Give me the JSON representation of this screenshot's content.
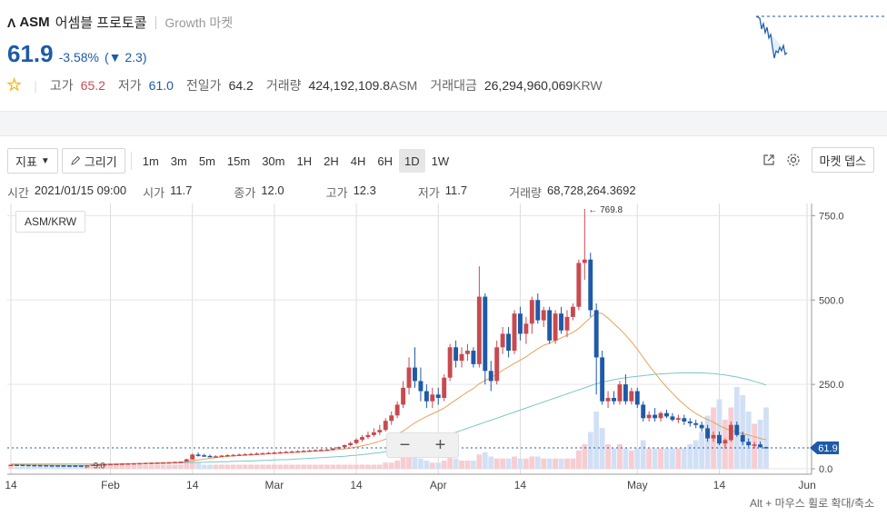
{
  "header": {
    "logo_glyph": "Λ",
    "symbol": "ASM",
    "korean_name": "어셈블 프로토콜",
    "market": "Growth 마켓",
    "price": "61.9",
    "change_pct": "-3.58%",
    "change_abs": "(▼ 2.3)",
    "high_label": "고가",
    "high_value": "65.2",
    "low_label": "저가",
    "low_value": "61.0",
    "prev_label": "전일가",
    "prev_value": "64.2",
    "volume_label": "거래량",
    "volume_value": "424,192,109.8",
    "volume_unit": "ASM",
    "amount_label": "거래대금",
    "amount_value": "26,294,960,069",
    "amount_unit": "KRW",
    "star_icon": "★"
  },
  "toolbar": {
    "indicator_label": "지표",
    "indicator_caret": "▼",
    "draw_label": "그리기",
    "intervals": [
      "1m",
      "3m",
      "5m",
      "15m",
      "30m",
      "1H",
      "2H",
      "4H",
      "6H",
      "1D",
      "1W"
    ],
    "active_interval": "1D",
    "depth_label": "마켓 뎁스"
  },
  "info": {
    "time_label": "시간",
    "time_value": "2021/01/15 09:00",
    "open_label": "시가",
    "open_value": "11.7",
    "close_label": "종가",
    "close_value": "12.0",
    "high_label": "고가",
    "high_value": "12.3",
    "low_label": "저가",
    "low_value": "11.7",
    "vol_label": "거래량",
    "vol_value": "68,728,264.3692"
  },
  "pair_label": "ASM/KRW",
  "zoom": {
    "minus": "−",
    "plus": "+"
  },
  "hint": "Alt + 마우스 휠로 확대/축소",
  "colors": {
    "up": "#c84a50",
    "down": "#1e5aa8",
    "ma_short": "#e8a15a",
    "ma_long": "#7cc6c4",
    "current_badge": "#1e5aa8"
  },
  "chart_data": {
    "type": "candlestick",
    "y_ticks": [
      "0.0",
      "250.0",
      "500.0",
      "750.0"
    ],
    "x_ticks": [
      "14",
      "Feb",
      "14",
      "Mar",
      "14",
      "Apr",
      "14",
      "May",
      "14",
      "Jun"
    ],
    "ylim": [
      0,
      770
    ],
    "current_price_label": "61.9",
    "max_annotation": "← 769.8",
    "min_annotation": "← 9.0",
    "candles": [
      [
        11.7,
        12.3,
        11.7,
        12.0
      ],
      [
        12.0,
        12.5,
        11.6,
        11.8
      ],
      [
        11.8,
        12.2,
        11.2,
        11.4
      ],
      [
        11.4,
        11.8,
        10.9,
        11.1
      ],
      [
        11.1,
        11.5,
        10.6,
        10.8
      ],
      [
        10.8,
        11.3,
        10.4,
        10.6
      ],
      [
        10.6,
        11.0,
        10.1,
        10.3
      ],
      [
        10.3,
        10.8,
        9.9,
        10.1
      ],
      [
        10.1,
        10.6,
        9.7,
        10.0
      ],
      [
        10.0,
        10.5,
        9.4,
        9.8
      ],
      [
        9.8,
        10.4,
        9.3,
        9.7
      ],
      [
        9.7,
        10.3,
        9.2,
        9.6
      ],
      [
        9.6,
        10.2,
        9.0,
        9.5
      ],
      [
        9.5,
        11.0,
        9.3,
        10.8
      ],
      [
        10.8,
        12.5,
        10.5,
        12.2
      ],
      [
        12.2,
        13.2,
        11.8,
        12.9
      ],
      [
        12.9,
        14.0,
        12.5,
        13.6
      ],
      [
        13.6,
        15.0,
        13.0,
        14.4
      ],
      [
        14.4,
        15.5,
        13.8,
        14.9
      ],
      [
        14.9,
        16.0,
        14.2,
        15.5
      ],
      [
        15.5,
        16.5,
        14.8,
        16.0
      ],
      [
        16.0,
        17.0,
        15.2,
        16.4
      ],
      [
        16.4,
        17.5,
        15.8,
        16.9
      ],
      [
        16.9,
        18.0,
        16.2,
        17.5
      ],
      [
        17.5,
        18.5,
        16.8,
        17.9
      ],
      [
        17.9,
        19.0,
        17.2,
        18.4
      ],
      [
        18.4,
        19.5,
        17.6,
        18.9
      ],
      [
        18.9,
        20.0,
        18.0,
        19.3
      ],
      [
        19.3,
        21.0,
        18.6,
        20.2
      ],
      [
        20.2,
        22.0,
        19.5,
        21.0
      ],
      [
        21.0,
        30.0,
        20.5,
        28.0
      ],
      [
        28.0,
        45.0,
        27.0,
        42.0
      ],
      [
        42.0,
        48.0,
        36.0,
        40.0
      ],
      [
        40.0,
        44.0,
        35.0,
        38.0
      ],
      [
        38.0,
        42.0,
        34.0,
        36.0
      ],
      [
        36.0,
        40.0,
        33.0,
        37.0
      ],
      [
        37.0,
        41.0,
        34.0,
        39.0
      ],
      [
        39.0,
        43.0,
        36.0,
        40.5
      ],
      [
        40.5,
        44.0,
        37.0,
        41.0
      ],
      [
        41.0,
        45.0,
        38.0,
        42.0
      ],
      [
        42.0,
        46.0,
        39.0,
        43.0
      ],
      [
        43.0,
        47.0,
        40.0,
        44.0
      ],
      [
        44.0,
        48.0,
        41.0,
        45.0
      ],
      [
        45.0,
        49.0,
        42.0,
        46.0
      ],
      [
        46.0,
        50.0,
        43.0,
        47.0
      ],
      [
        47.0,
        51.0,
        44.0,
        48.0
      ],
      [
        48.0,
        52.0,
        45.0,
        49.0
      ],
      [
        49.0,
        53.0,
        46.0,
        50.0
      ],
      [
        50.0,
        54.0,
        47.0,
        51.0
      ],
      [
        51.0,
        55.0,
        48.0,
        52.0
      ],
      [
        52.0,
        56.0,
        49.0,
        53.0
      ],
      [
        53.0,
        57.0,
        50.0,
        54.0
      ],
      [
        54.0,
        58.0,
        51.0,
        55.0
      ],
      [
        55.0,
        59.0,
        52.0,
        56.0
      ],
      [
        56.0,
        60.0,
        53.0,
        57.0
      ],
      [
        57.0,
        62.0,
        54.0,
        60.0
      ],
      [
        60.0,
        66.0,
        58.0,
        64.0
      ],
      [
        64.0,
        72.0,
        62.0,
        70.0
      ],
      [
        70.0,
        80.0,
        66.0,
        76.0
      ],
      [
        76.0,
        90.0,
        72.0,
        86.0
      ],
      [
        86.0,
        100.0,
        80.0,
        94.0
      ],
      [
        94.0,
        110.0,
        88.0,
        100.0
      ],
      [
        100.0,
        120.0,
        95.0,
        108.0
      ],
      [
        108.0,
        130.0,
        100.0,
        115.0
      ],
      [
        115.0,
        150.0,
        110.0,
        142.0
      ],
      [
        142.0,
        170.0,
        130.0,
        158.0
      ],
      [
        158.0,
        200.0,
        150.0,
        190.0
      ],
      [
        190.0,
        260.0,
        180.0,
        240.0
      ],
      [
        240.0,
        330.0,
        220.0,
        300.0
      ],
      [
        300.0,
        360.0,
        240.0,
        260.0
      ],
      [
        260.0,
        300.0,
        200.0,
        230.0
      ],
      [
        230.0,
        250.0,
        180.0,
        200.0
      ],
      [
        200.0,
        240.0,
        180.0,
        220.0
      ],
      [
        220.0,
        240.0,
        190.0,
        210.0
      ],
      [
        210.0,
        280.0,
        200.0,
        270.0
      ],
      [
        270.0,
        370.0,
        260.0,
        360.0
      ],
      [
        360.0,
        380.0,
        300.0,
        320.0
      ],
      [
        320.0,
        360.0,
        300.0,
        340.0
      ],
      [
        340.0,
        370.0,
        320.0,
        350.0
      ],
      [
        350.0,
        360.0,
        300.0,
        310.0
      ],
      [
        310.0,
        600.0,
        300.0,
        510.0
      ],
      [
        510.0,
        520.0,
        250.0,
        290.0
      ],
      [
        290.0,
        320.0,
        230.0,
        260.0
      ],
      [
        260.0,
        380.0,
        250.0,
        360.0
      ],
      [
        360.0,
        420.0,
        340.0,
        400.0
      ],
      [
        400.0,
        420.0,
        330.0,
        350.0
      ],
      [
        350.0,
        470.0,
        340.0,
        460.0
      ],
      [
        460.0,
        480.0,
        380.0,
        400.0
      ],
      [
        400.0,
        450.0,
        370.0,
        430.0
      ],
      [
        430.0,
        510.0,
        400.0,
        500.0
      ],
      [
        500.0,
        520.0,
        430.0,
        440.0
      ],
      [
        440.0,
        480.0,
        420.0,
        470.0
      ],
      [
        470.0,
        480.0,
        370.0,
        380.0
      ],
      [
        380.0,
        470.0,
        370.0,
        460.0
      ],
      [
        460.0,
        480.0,
        400.0,
        410.0
      ],
      [
        410.0,
        470.0,
        390.0,
        450.0
      ],
      [
        450.0,
        490.0,
        440.0,
        480.0
      ],
      [
        480.0,
        620.0,
        470.0,
        610.0
      ],
      [
        610.0,
        770.0,
        560.0,
        620.0
      ],
      [
        620.0,
        640.0,
        450.0,
        470.0
      ],
      [
        470.0,
        490.0,
        220.0,
        330.0
      ],
      [
        330.0,
        350.0,
        190.0,
        200.0
      ],
      [
        200.0,
        230.0,
        180.0,
        210.0
      ],
      [
        210.0,
        230.0,
        190.0,
        200.0
      ],
      [
        200.0,
        260.0,
        190.0,
        250.0
      ],
      [
        250.0,
        280.0,
        190.0,
        200.0
      ],
      [
        200.0,
        240.0,
        190.0,
        230.0
      ],
      [
        230.0,
        240.0,
        180.0,
        190.0
      ],
      [
        190.0,
        200.0,
        140.0,
        150.0
      ],
      [
        150.0,
        170.0,
        140.0,
        160.0
      ],
      [
        160.0,
        180.0,
        140.0,
        150.0
      ],
      [
        150.0,
        170.0,
        140.0,
        165.0
      ],
      [
        165.0,
        175.0,
        150.0,
        155.0
      ],
      [
        155.0,
        165.0,
        140.0,
        145.0
      ],
      [
        145.0,
        160.0,
        135.0,
        150.0
      ],
      [
        150.0,
        160.0,
        130.0,
        140.0
      ],
      [
        140.0,
        150.0,
        125.0,
        135.0
      ],
      [
        135.0,
        145.0,
        120.0,
        130.0
      ],
      [
        130.0,
        140.0,
        110.0,
        120.0
      ],
      [
        120.0,
        130.0,
        80.0,
        90.0
      ],
      [
        90.0,
        110.0,
        80.0,
        100.0
      ],
      [
        100.0,
        110.0,
        70.0,
        75.0
      ],
      [
        75.0,
        90.0,
        60.0,
        85.0
      ],
      [
        85.0,
        140.0,
        80.0,
        130.0
      ],
      [
        130.0,
        140.0,
        95.0,
        100.0
      ],
      [
        100.0,
        110.0,
        70.0,
        80.0
      ],
      [
        80.0,
        90.0,
        65.0,
        70.0
      ],
      [
        70.0,
        80.0,
        60.0,
        72.0
      ],
      [
        72.0,
        80.0,
        62.0,
        64.2
      ],
      [
        64.2,
        65.2,
        61.0,
        61.9
      ]
    ],
    "ma_short": [
      12,
      12,
      11.8,
      11.6,
      11.4,
      11.2,
      11,
      10.8,
      10.6,
      10.4,
      10.2,
      10.1,
      10,
      10.1,
      10.4,
      10.9,
      11.5,
      12.2,
      13,
      13.8,
      14.5,
      15.1,
      15.7,
      16.2,
      16.8,
      17.3,
      17.8,
      18.3,
      18.9,
      19.6,
      21,
      23.5,
      26,
      28.5,
      31,
      33,
      35,
      36.5,
      38,
      39.2,
      40.3,
      41.3,
      42.3,
      43.3,
      44.3,
      45.3,
      46.3,
      47.3,
      48.3,
      49.3,
      50.3,
      51.3,
      52.3,
      53.3,
      54.3,
      55.5,
      57,
      59,
      61.5,
      64.5,
      68,
      72,
      76.5,
      81.5,
      87.5,
      94,
      102,
      112,
      124,
      136,
      146,
      155,
      163,
      171,
      180,
      192,
      204,
      216,
      228,
      238,
      252,
      262,
      270,
      280,
      292,
      302,
      312,
      322,
      332,
      344,
      356,
      366,
      372,
      380,
      388,
      396,
      404,
      416,
      432,
      448,
      462,
      460,
      446,
      430,
      414,
      396,
      376,
      354,
      330,
      306,
      284,
      262,
      242,
      224,
      206,
      190,
      176,
      164,
      154,
      146,
      138,
      128,
      120,
      113,
      108,
      104,
      100,
      95,
      90,
      86
    ],
    "ma_long": [
      14,
      14,
      14,
      14,
      14,
      14,
      14,
      14,
      14,
      14,
      14,
      14,
      14,
      14,
      14,
      14,
      14,
      14,
      14,
      15,
      15,
      15,
      15,
      16,
      16,
      16,
      16,
      17,
      17,
      17,
      18,
      18,
      19,
      19,
      20,
      20,
      21,
      21,
      22,
      22,
      23,
      23,
      24,
      25,
      25,
      26,
      27,
      27,
      28,
      29,
      30,
      31,
      32,
      33,
      34,
      35,
      36,
      37,
      39,
      40,
      42,
      44,
      46,
      48,
      51,
      54,
      57,
      61,
      65,
      70,
      75,
      80,
      85,
      90,
      96,
      102,
      108,
      114,
      120,
      126,
      132,
      138,
      144,
      150,
      156,
      162,
      168,
      174,
      180,
      186,
      192,
      198,
      204,
      210,
      216,
      222,
      228,
      234,
      240,
      246,
      252,
      256,
      260,
      264,
      267,
      270,
      272,
      274,
      276,
      278,
      280,
      281,
      282,
      283,
      284,
      284,
      284,
      284,
      284,
      283,
      282,
      280,
      278,
      275,
      272,
      268,
      264,
      259,
      254,
      248
    ],
    "volume": [
      2,
      1,
      1,
      1,
      1,
      1,
      1,
      1,
      1,
      1,
      1,
      1,
      1,
      1,
      2,
      2,
      2,
      2,
      2,
      2,
      2,
      2,
      2,
      2,
      2,
      2,
      2,
      2,
      2,
      2,
      3,
      5,
      3,
      2,
      2,
      2,
      2,
      2,
      2,
      2,
      2,
      2,
      2,
      2,
      2,
      2,
      2,
      2,
      2,
      2,
      2,
      2,
      2,
      2,
      2,
      2,
      2,
      2,
      2,
      2,
      2,
      2,
      2,
      2,
      3,
      3,
      4,
      6,
      8,
      6,
      5,
      4,
      3,
      3,
      4,
      6,
      5,
      4,
      4,
      4,
      7,
      8,
      6,
      5,
      5,
      5,
      6,
      5,
      5,
      6,
      6,
      5,
      5,
      5,
      5,
      5,
      5,
      9,
      12,
      18,
      28,
      20,
      12,
      10,
      12,
      10,
      9,
      10,
      14,
      10,
      10,
      10,
      10,
      10,
      10,
      10,
      12,
      14,
      18,
      26,
      30,
      34,
      24,
      30,
      40,
      36,
      28,
      22,
      24,
      30
    ]
  }
}
